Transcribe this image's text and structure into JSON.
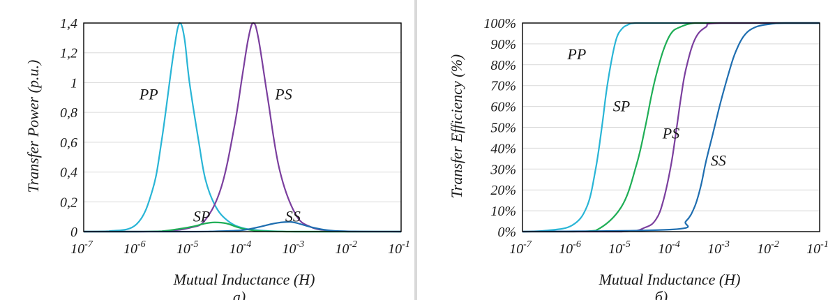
{
  "chart_data": [
    {
      "type": "line",
      "caption": "а)",
      "xlabel": "Mutual Inductance (H)",
      "ylabel": "Transfer Power (p.u.)",
      "xscale": "log",
      "xlim": [
        1e-07,
        0.1
      ],
      "ylim": [
        0,
        1.4
      ],
      "x_tick_labels": [
        {
          "base": "10",
          "exp": "-7"
        },
        {
          "base": "10",
          "exp": "-6"
        },
        {
          "base": "10",
          "exp": "-5"
        },
        {
          "base": "10",
          "exp": "-4"
        },
        {
          "base": "10",
          "exp": "-3"
        },
        {
          "base": "10",
          "exp": "-2"
        },
        {
          "base": "10",
          "exp": "-1"
        }
      ],
      "y_ticks": [
        0,
        0.2,
        0.4,
        0.6,
        0.8,
        1,
        1.2,
        1.4
      ],
      "y_tick_labels": [
        "0",
        "0,2",
        "0,4",
        "0,6",
        "0,8",
        "1",
        "1,2",
        "1,4"
      ],
      "grid": true,
      "series": [
        {
          "name": "PP",
          "color": "#29b5d6",
          "x": [
            1e-07,
            3e-07,
            1e-06,
            2e-06,
            3e-06,
            5e-06,
            6.5e-06,
            8e-06,
            1e-05,
            1.5e-05,
            2e-05,
            3e-05,
            5e-05,
            0.0001,
            0.0003,
            0.001,
            0.01,
            0.1
          ],
          "y": [
            0,
            0.003,
            0.05,
            0.28,
            0.62,
            1.2,
            1.4,
            1.3,
            1.0,
            0.6,
            0.35,
            0.18,
            0.08,
            0.025,
            0.005,
            0,
            0,
            0
          ]
        },
        {
          "name": "PS",
          "color": "#7b3f9e",
          "x": [
            1e-07,
            1e-06,
            3e-06,
            1e-05,
            2e-05,
            4e-05,
            7e-05,
            0.0001,
            0.00013,
            0.00016,
            0.0002,
            0.0003,
            0.0005,
            0.001,
            0.002,
            0.005,
            0.01,
            0.1
          ],
          "y": [
            0,
            0,
            0.002,
            0.025,
            0.08,
            0.3,
            0.7,
            1.05,
            1.3,
            1.4,
            1.3,
            0.9,
            0.42,
            0.12,
            0.03,
            0.005,
            0,
            0
          ]
        },
        {
          "name": "SP",
          "color": "#1fae56",
          "x": [
            1e-07,
            1e-06,
            3e-06,
            1e-05,
            2e-05,
            3e-05,
            5e-05,
            8e-05,
            0.00012,
            0.0002,
            0.0005,
            0.001,
            0.01,
            0.1
          ],
          "y": [
            0,
            0,
            0.003,
            0.03,
            0.055,
            0.062,
            0.055,
            0.03,
            0.015,
            0.005,
            0.001,
            0,
            0,
            0
          ]
        },
        {
          "name": "SS",
          "color": "#1f6eb0",
          "x": [
            1e-07,
            1e-05,
            3e-05,
            0.0001,
            0.0002,
            0.0004,
            0.0007,
            0.001,
            0.002,
            0.004,
            0.01,
            0.1
          ],
          "y": [
            0,
            0,
            0.002,
            0.01,
            0.03,
            0.055,
            0.065,
            0.06,
            0.03,
            0.01,
            0.002,
            0
          ]
        }
      ],
      "annotations": [
        {
          "text": "PP",
          "series": "PP",
          "x": 1.7e-06,
          "y": 0.92
        },
        {
          "text": "PS",
          "series": "PS",
          "x": 0.0006,
          "y": 0.92
        },
        {
          "text": "SP",
          "series": "SP",
          "x": 1.7e-05,
          "y": 0.1
        },
        {
          "text": "SS",
          "series": "SS",
          "x": 0.0009,
          "y": 0.1
        }
      ]
    },
    {
      "type": "line",
      "caption": "б)",
      "xlabel": "Mutual Inductance (H)",
      "ylabel": "Transfer Efficiency (%)",
      "xscale": "log",
      "xlim": [
        1e-07,
        0.1
      ],
      "ylim": [
        0,
        100
      ],
      "x_tick_labels": [
        {
          "base": "10",
          "exp": "-7"
        },
        {
          "base": "10",
          "exp": "-6"
        },
        {
          "base": "10",
          "exp": "-5"
        },
        {
          "base": "10",
          "exp": "-4"
        },
        {
          "base": "10",
          "exp": "-3"
        },
        {
          "base": "10",
          "exp": "-2"
        },
        {
          "base": "10",
          "exp": "-1"
        }
      ],
      "y_ticks": [
        0,
        10,
        20,
        30,
        40,
        50,
        60,
        70,
        80,
        90,
        100
      ],
      "y_tick_labels": [
        "0%",
        "10%",
        "20%",
        "30%",
        "40%",
        "50%",
        "60%",
        "70%",
        "80%",
        "90%",
        "100%"
      ],
      "grid": true,
      "series": [
        {
          "name": "PP",
          "color": "#29b5d6",
          "x": [
            1e-07,
            3e-07,
            1e-06,
            2e-06,
            3e-06,
            4e-06,
            5e-06,
            6.5e-06,
            8e-06,
            1e-05,
            1.3e-05,
            2e-05,
            0.0001,
            0.1
          ],
          "y": [
            0,
            0.5,
            3,
            12,
            30,
            50,
            68,
            84,
            93,
            97,
            99,
            100,
            100,
            100
          ]
        },
        {
          "name": "SP",
          "color": "#1fae56",
          "x": [
            1e-07,
            1e-06,
            3e-06,
            1e-05,
            2e-05,
            3e-05,
            4e-05,
            5e-05,
            7e-05,
            0.0001,
            0.00015,
            0.0003,
            0.001,
            0.1
          ],
          "y": [
            0,
            0,
            0.5,
            12,
            32,
            50,
            65,
            75,
            87,
            95,
            98,
            100,
            100,
            100
          ]
        },
        {
          "name": "PS",
          "color": "#7b3f9e",
          "x": [
            1e-07,
            1e-05,
            3e-05,
            5e-05,
            7e-05,
            0.0001,
            0.00013,
            0.00016,
            0.0002,
            0.0003,
            0.0005,
            0.001,
            0.1
          ],
          "y": [
            0,
            0,
            2,
            6,
            15,
            32,
            50,
            65,
            78,
            92,
            98,
            100,
            100
          ]
        },
        {
          "name": "SS",
          "color": "#1f6eb0",
          "x": [
            1e-07,
            0.0001,
            0.0002,
            0.0003,
            0.0004,
            0.0005,
            0.0007,
            0.001,
            0.0015,
            0.002,
            0.003,
            0.005,
            0.01,
            0.02,
            0.1
          ],
          "y": [
            0,
            1,
            5,
            12,
            22,
            33,
            47,
            62,
            77,
            86,
            94,
            98,
            99.5,
            100,
            100
          ]
        }
      ],
      "annotations": [
        {
          "text": "PP",
          "series": "PP",
          "x": 1.25e-06,
          "y": 85
        },
        {
          "text": "SP",
          "series": "SP",
          "x": 1e-05,
          "y": 60
        },
        {
          "text": "PS",
          "series": "PS",
          "x": 0.0001,
          "y": 47
        },
        {
          "text": "SS",
          "series": "SS",
          "x": 0.0009,
          "y": 34
        }
      ]
    }
  ]
}
